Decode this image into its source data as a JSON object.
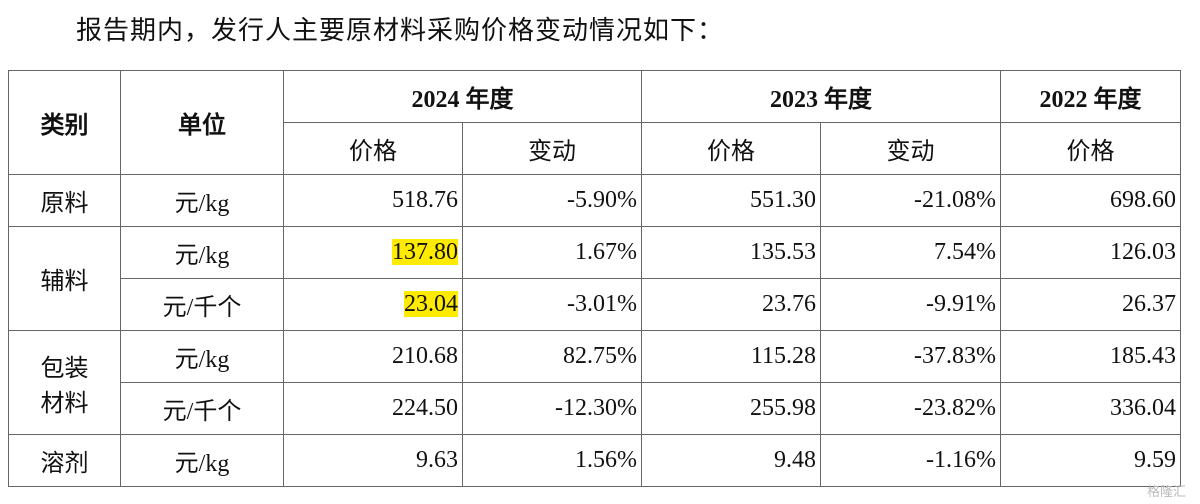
{
  "intro": "报告期内，发行人主要原材料采购价格变动情况如下：",
  "table": {
    "header": {
      "category": "类别",
      "unit": "单位",
      "years": [
        "2024 年度",
        "2023 年度",
        "2022 年度"
      ],
      "subheaders": [
        "价格",
        "变动",
        "价格",
        "变动",
        "价格"
      ]
    },
    "groups": [
      {
        "category": [
          "原料"
        ],
        "rows": [
          {
            "unit": "元/kg",
            "values": [
              "518.76",
              "-5.90%",
              "551.30",
              "-21.08%",
              "698.60"
            ]
          }
        ]
      },
      {
        "category": [
          "辅料"
        ],
        "rows": [
          {
            "unit": "元/kg",
            "values": [
              "137.80",
              "1.67%",
              "135.53",
              "7.54%",
              "126.03"
            ]
          },
          {
            "unit": "元/千个",
            "values": [
              "23.04",
              "-3.01%",
              "23.76",
              "-9.91%",
              "26.37"
            ]
          }
        ]
      },
      {
        "category": [
          "包装",
          "材料"
        ],
        "rows": [
          {
            "unit": "元/kg",
            "values": [
              "210.68",
              "82.75%",
              "115.28",
              "-37.83%",
              "185.43"
            ]
          },
          {
            "unit": "元/千个",
            "values": [
              "224.50",
              "-12.30%",
              "255.98",
              "-23.82%",
              "336.04"
            ]
          }
        ]
      },
      {
        "category": [
          "溶剂"
        ],
        "rows": [
          {
            "unit": "元/kg",
            "values": [
              "9.63",
              "1.56%",
              "9.48",
              "-1.16%",
              "9.59"
            ]
          }
        ]
      }
    ]
  },
  "watermark": "格隆汇"
}
